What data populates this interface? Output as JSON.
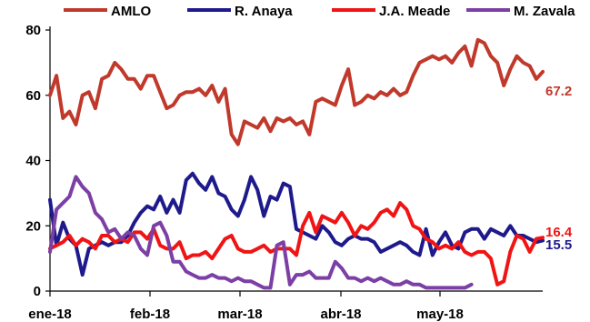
{
  "chart_data": {
    "type": "line",
    "x_ticks": [
      "ene-18",
      "feb-18",
      "mar-18",
      "abr-18",
      "may-18"
    ],
    "ylim": [
      0,
      80
    ],
    "y_ticks": [
      "0",
      "20",
      "40",
      "60",
      "80"
    ],
    "grid": false,
    "legend_position": "top",
    "series": [
      {
        "name": "AMLO",
        "color": "#C0392B",
        "end_label": "67.2",
        "values": [
          60,
          66,
          53,
          55,
          51,
          60,
          61,
          56,
          65,
          66,
          70,
          68,
          65,
          65,
          62,
          66,
          66,
          61,
          56,
          57,
          60,
          61,
          61,
          62,
          60,
          63,
          58,
          62,
          48,
          45,
          52,
          51,
          50,
          53,
          49,
          53,
          52,
          53,
          51,
          52,
          48,
          58,
          59,
          58,
          57,
          63,
          68,
          57,
          58,
          60,
          59,
          61,
          60,
          62,
          60,
          61,
          66,
          70,
          71,
          72,
          71,
          72,
          70,
          73,
          75,
          69,
          77,
          76,
          72,
          70,
          63,
          68,
          72,
          70,
          69,
          65,
          67.2
        ]
      },
      {
        "name": "R. Anaya",
        "color": "#1F1A8C",
        "end_label": "15.5",
        "values": [
          28,
          14,
          21,
          16,
          14,
          5,
          13,
          14,
          15,
          14,
          15,
          15,
          17,
          21,
          24,
          26,
          25,
          29,
          24,
          28,
          24,
          34,
          36,
          33,
          31,
          35,
          30,
          29,
          25,
          23,
          28,
          35,
          31,
          23,
          29,
          28,
          33,
          32,
          19,
          18,
          17,
          16,
          20,
          18,
          15,
          14,
          16,
          17,
          16,
          16,
          15,
          12,
          13,
          14,
          15,
          14,
          12,
          11,
          19,
          11,
          15,
          18,
          14,
          13,
          18,
          19,
          19,
          16,
          19,
          18,
          17,
          20,
          17,
          17,
          16,
          15,
          15.5
        ]
      },
      {
        "name": "J.A. Meade",
        "color": "#F01414",
        "end_label": "16.4",
        "values": [
          13,
          14,
          15,
          17,
          14,
          16,
          15,
          13,
          17,
          17,
          15,
          16,
          15,
          18,
          18,
          16,
          19,
          14,
          13,
          13,
          15,
          10,
          11,
          11,
          12,
          10,
          13,
          16,
          17,
          13,
          12,
          12,
          13,
          14,
          12,
          13,
          13,
          13,
          11,
          20,
          24,
          18,
          23,
          22,
          21,
          24,
          21,
          17,
          20,
          19,
          21,
          24,
          25,
          23,
          27,
          25,
          20,
          19,
          16,
          15,
          13,
          14,
          13,
          15,
          12,
          11,
          12,
          12,
          10,
          2,
          3,
          12,
          17,
          16,
          12,
          16,
          16.4
        ]
      },
      {
        "name": "M. Zavala",
        "color": "#7B3FA6",
        "values": [
          12,
          25,
          27,
          29,
          35,
          32,
          30,
          24,
          22,
          18,
          19,
          16,
          18,
          17,
          13,
          11,
          20,
          21,
          17,
          9,
          9,
          6,
          5,
          4,
          4,
          5,
          4,
          4,
          3,
          4,
          3,
          3,
          2,
          1,
          1,
          14,
          15,
          2,
          5,
          5,
          6,
          4,
          4,
          4,
          9,
          7,
          4,
          4,
          3,
          4,
          3,
          4,
          3,
          2,
          2,
          3,
          2,
          2,
          1,
          1,
          1,
          1,
          1,
          1,
          1,
          2
        ]
      }
    ]
  }
}
